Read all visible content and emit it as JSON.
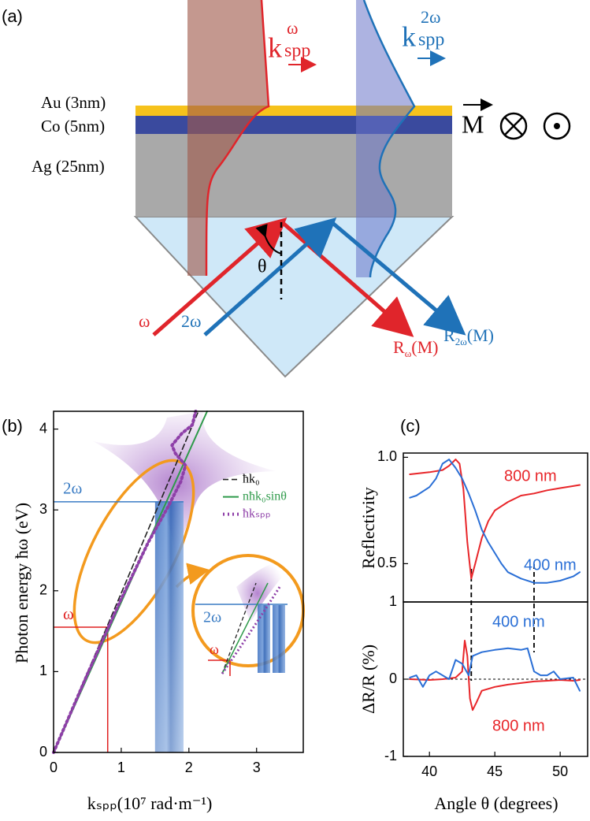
{
  "diagram": {
    "panel_label": "(a)",
    "layers": [
      "Au (3nm)",
      "Co (5nm)",
      "Ag (25nm)"
    ],
    "k_omega": {
      "base": "k",
      "sup": "ω",
      "sub": "spp"
    },
    "k_2omega": {
      "base": "k",
      "sup": "2ω",
      "sub": "spp"
    },
    "magnetization": "M",
    "angle": "θ",
    "beam_omega": "ω",
    "beam_2omega": "2ω",
    "reflected_omega": {
      "base": "R",
      "sub": "ω",
      "suffix": "(M)"
    },
    "reflected_2omega": {
      "base": "R",
      "sub": "2ω",
      "suffix": "(M)"
    }
  },
  "chart_data": [
    {
      "type": "line",
      "panel_label": "(b)",
      "x_label": "kₛₚₚ(10⁷ rad·m⁻¹)",
      "y_label": "Photon energy ħω (eV)",
      "xlim": [
        0,
        3.69
      ],
      "xticks": [
        0,
        1,
        2,
        3
      ],
      "ylim": [
        0,
        4.22
      ],
      "yticks": [
        0,
        1,
        2,
        3,
        4
      ],
      "legend": "center right",
      "series": [
        {
          "name": "ħk₀",
          "color": "#222222",
          "style": "dashed",
          "x": [
            0,
            2.13
          ],
          "values": [
            0,
            4.2
          ]
        },
        {
          "name": "nħk₀sinθ",
          "color": "#2e9a4a",
          "style": "solid",
          "x": [
            0,
            2.27
          ],
          "values": [
            0,
            4.22
          ]
        },
        {
          "name": "ħkₛₚₚ",
          "color": "#8e3fa8",
          "style": "dotted",
          "x": [
            0,
            0.5,
            1.0,
            1.4,
            1.7,
            1.88,
            1.95,
            1.8,
            1.75,
            1.9,
            2.05,
            2.1
          ],
          "values": [
            0,
            0.97,
            1.9,
            2.6,
            3.05,
            3.35,
            3.55,
            3.7,
            3.8,
            3.95,
            4.05,
            4.22
          ]
        }
      ],
      "annotations": [
        {
          "text": "2ω",
          "color": "#3a7cc4",
          "x": 1.92,
          "y": 3.1
        },
        {
          "text": "ω",
          "color": "#e02020",
          "x": 0.8,
          "y": 1.55
        }
      ],
      "band": {
        "x": [
          1.5,
          1.92
        ],
        "y": 3.1,
        "color": "#3a6fc0"
      },
      "inset": {
        "labels": [
          "2ω",
          "ω"
        ]
      }
    },
    {
      "type": "line",
      "panel_label": "(c)",
      "y_label": "Reflectivity",
      "xlim": [
        38,
        52.1
      ],
      "ylim": [
        0.32,
        1.02
      ],
      "yticks": [
        {
          "value": 1.0,
          "label": "1.0"
        },
        0.5
      ],
      "vlines": [
        43.2,
        48
      ],
      "series": [
        {
          "name": "800 nm",
          "color": "#e8262a",
          "style": "solid",
          "x": [
            38.5,
            40,
            41,
            41.5,
            42,
            42.3,
            42.6,
            42.9,
            43.2,
            43.5,
            44,
            44.5,
            45,
            46,
            47,
            48,
            49,
            50,
            51,
            51.5
          ],
          "values": [
            0.92,
            0.93,
            0.94,
            0.96,
            0.99,
            0.97,
            0.85,
            0.6,
            0.43,
            0.5,
            0.62,
            0.7,
            0.75,
            0.79,
            0.82,
            0.83,
            0.845,
            0.855,
            0.865,
            0.87
          ]
        },
        {
          "name": "400 nm",
          "color": "#2a6fd6",
          "style": "solid",
          "x": [
            38.5,
            39,
            40,
            40.5,
            41,
            41.5,
            42,
            42.5,
            43,
            43.5,
            44,
            44.5,
            45,
            45.5,
            46,
            47,
            48,
            49,
            50,
            51,
            51.5
          ],
          "values": [
            0.81,
            0.82,
            0.86,
            0.9,
            0.97,
            0.99,
            0.95,
            0.9,
            0.83,
            0.75,
            0.66,
            0.6,
            0.55,
            0.5,
            0.46,
            0.43,
            0.41,
            0.41,
            0.42,
            0.44,
            0.46
          ]
        }
      ]
    },
    {
      "type": "line",
      "x_label": "Angle θ (degrees)",
      "y_label": "ΔR/R (%)",
      "xlim": [
        38,
        52.1
      ],
      "xticks": [
        40,
        45,
        50
      ],
      "ylim": [
        -1,
        1
      ],
      "yticks": [
        1,
        0,
        -1
      ],
      "hline": 0,
      "series": [
        {
          "name": "800 nm",
          "color": "#e8262a",
          "style": "solid",
          "x": [
            38.5,
            40,
            41,
            42,
            42.5,
            42.7,
            42.9,
            43.1,
            43.3,
            43.6,
            44,
            45,
            46,
            47,
            48,
            49,
            50,
            51,
            51.5
          ],
          "values": [
            0,
            -0.01,
            0,
            0.02,
            0.1,
            0.5,
            0.3,
            -0.25,
            -0.4,
            -0.3,
            -0.15,
            -0.1,
            -0.07,
            -0.05,
            -0.03,
            -0.02,
            -0.01,
            -0.02,
            -0.01
          ]
        },
        {
          "name": "400 nm",
          "color": "#2a6fd6",
          "style": "solid",
          "x": [
            38.5,
            39,
            39.5,
            40,
            40.5,
            41,
            41.5,
            42,
            42.5,
            43,
            43.3,
            44,
            45,
            46,
            47,
            47.5,
            48,
            48.5,
            49,
            49.5,
            50,
            51,
            51.5
          ],
          "values": [
            0.02,
            0.05,
            -0.1,
            0.05,
            0.1,
            0.05,
            0,
            0.25,
            0.2,
            0.05,
            0.3,
            0.35,
            0.38,
            0.4,
            0.38,
            0.4,
            0.1,
            0.05,
            0.05,
            0.1,
            0,
            0.02,
            -0.15
          ]
        }
      ]
    }
  ]
}
